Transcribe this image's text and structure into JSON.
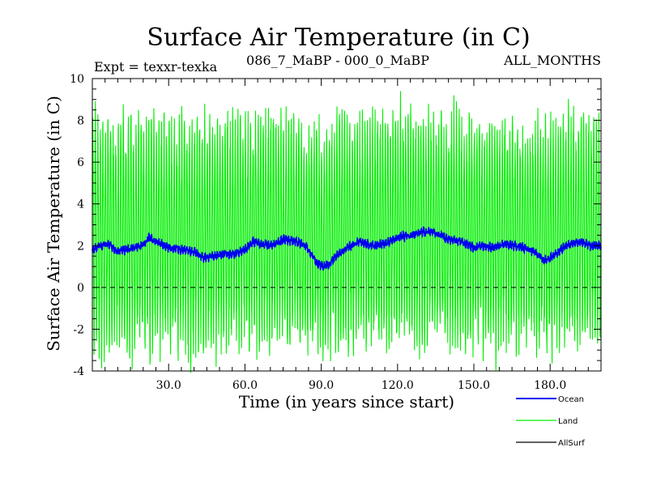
{
  "chart_data": {
    "type": "line",
    "title": "Surface Air Temperature (in C)",
    "subtitle_left": "Expt = texxr-texka",
    "subtitle_center": "086_7_MaBP - 000_0_MaBP",
    "subtitle_right": "ALL_MONTHS",
    "xlabel": "Time (in years since start)",
    "ylabel": "Surface Air Temperature (in C)",
    "xlim": [
      0,
      200
    ],
    "ylim": [
      -4,
      10
    ],
    "x_ticks": [
      30,
      60,
      90,
      120,
      150,
      180
    ],
    "x_tick_labels": [
      "30.0",
      "60.0",
      "90.0",
      "120.0",
      "150.0",
      "180.0"
    ],
    "y_ticks": [
      -4,
      -2,
      0,
      2,
      4,
      6,
      8,
      10
    ],
    "y_tick_labels": [
      "-4",
      "-2",
      "0",
      "2",
      "4",
      "6",
      "8",
      "10"
    ],
    "zero_line": 0,
    "series": [
      {
        "name": "Land",
        "color": "#00ee00",
        "description": "monthly land-mean anomaly, seasonal cycle",
        "seasonal_amplitude": 5.2,
        "smooth_x": [
          0,
          10,
          20,
          30,
          40,
          50,
          60,
          70,
          80,
          90,
          100,
          110,
          120,
          130,
          140,
          150,
          160,
          170,
          180,
          190,
          200
        ],
        "smooth_y": [
          2.6,
          2.5,
          2.6,
          2.6,
          2.3,
          2.4,
          2.7,
          2.7,
          2.6,
          2.2,
          2.6,
          2.6,
          2.9,
          2.9,
          2.7,
          2.5,
          2.5,
          2.6,
          2.3,
          2.7,
          2.6
        ]
      },
      {
        "name": "Ocean",
        "color": "#0000ee",
        "description": "monthly ocean-mean anomaly",
        "x": [
          0,
          3,
          6,
          10,
          15,
          20,
          22,
          25,
          30,
          35,
          40,
          44,
          48,
          52,
          56,
          60,
          63,
          66,
          70,
          75,
          80,
          84,
          88,
          91,
          93,
          96,
          100,
          105,
          110,
          115,
          120,
          125,
          130,
          135,
          140,
          145,
          150,
          154,
          158,
          162,
          166,
          170,
          174,
          177,
          180,
          184,
          188,
          192,
          196,
          200
        ],
        "y": [
          1.8,
          2.0,
          2.1,
          1.7,
          1.9,
          2.0,
          2.4,
          2.2,
          1.9,
          1.8,
          1.7,
          1.4,
          1.5,
          1.6,
          1.6,
          1.8,
          2.2,
          2.1,
          2.0,
          2.3,
          2.2,
          2.0,
          1.2,
          1.0,
          1.1,
          1.5,
          1.9,
          2.2,
          2.0,
          2.1,
          2.4,
          2.5,
          2.7,
          2.6,
          2.3,
          2.2,
          1.9,
          2.0,
          1.9,
          2.1,
          2.0,
          1.9,
          1.7,
          1.3,
          1.4,
          1.8,
          2.1,
          2.2,
          2.0,
          2.0
        ],
        "noise": 0.18
      },
      {
        "name": "AllSurf",
        "color": "#000000",
        "description": "legend only (not visible in plot area)"
      }
    ],
    "legend_position": "bottom-right",
    "legend_entries": [
      "Ocean",
      "Land",
      "AllSurf"
    ]
  }
}
